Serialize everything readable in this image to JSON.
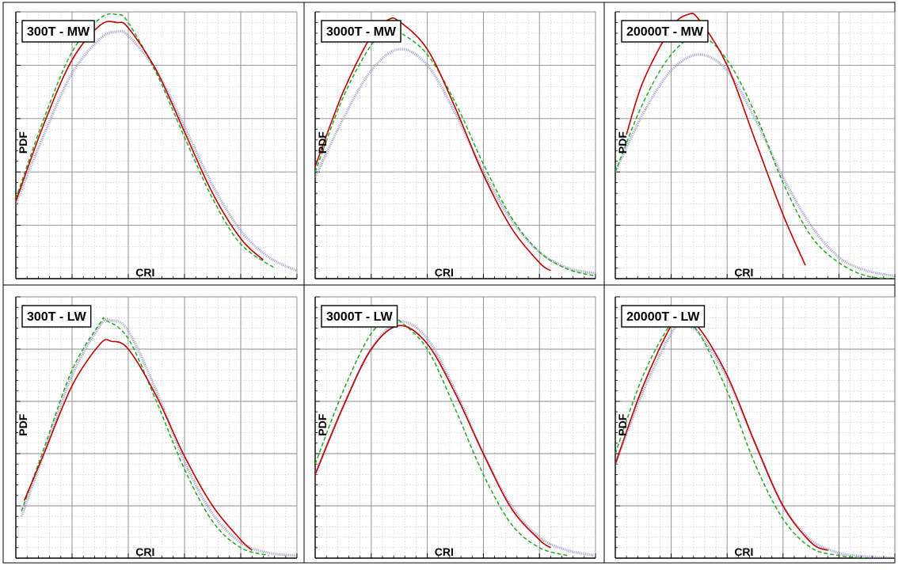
{
  "figure": {
    "colors": {
      "series_solid": "#c00000",
      "series_dashed": "#22aa22",
      "series_dotted": "#9a9ac8",
      "major_grid": "#8a8a8a",
      "minor_grid": "#c8c8c8",
      "frame": "#000000",
      "background": "#ffffff"
    }
  },
  "chart_data": [
    {
      "type": "line",
      "title": "300T - MW",
      "xlabel": "CRI",
      "ylabel": "PDF",
      "xlim": [
        0,
        5
      ],
      "ylim": [
        0,
        5
      ],
      "grid": true,
      "series": [
        {
          "style": "solid",
          "color": "#c00000",
          "x": [
            0.0,
            0.5,
            1.0,
            1.5,
            1.8,
            2.0,
            2.5,
            3.0,
            3.5,
            4.0,
            4.4
          ],
          "y": [
            1.45,
            2.9,
            4.1,
            4.75,
            4.8,
            4.7,
            3.9,
            2.75,
            1.6,
            0.75,
            0.35
          ]
        },
        {
          "style": "dashed",
          "color": "#22aa22",
          "x": [
            0.0,
            0.5,
            1.0,
            1.5,
            1.8,
            2.0,
            2.5,
            3.0,
            3.5,
            4.0,
            4.6
          ],
          "y": [
            1.5,
            3.0,
            4.25,
            4.88,
            4.95,
            4.8,
            3.85,
            2.65,
            1.5,
            0.65,
            0.2
          ]
        },
        {
          "style": "dotted",
          "color": "#9a9ac8",
          "x": [
            0.0,
            0.5,
            1.0,
            1.5,
            1.8,
            2.0,
            2.5,
            3.0,
            3.5,
            4.0,
            4.5,
            5.0
          ],
          "y": [
            1.4,
            2.7,
            3.85,
            4.5,
            4.63,
            4.55,
            3.9,
            2.85,
            1.75,
            0.9,
            0.4,
            0.15
          ]
        }
      ]
    },
    {
      "type": "line",
      "title": "3000T - MW",
      "xlabel": "CRI",
      "ylabel": "PDF",
      "xlim": [
        0,
        5
      ],
      "ylim": [
        0,
        5
      ],
      "grid": true,
      "series": [
        {
          "style": "solid",
          "color": "#c00000",
          "x": [
            0.0,
            0.5,
            1.0,
            1.3,
            1.5,
            2.0,
            2.5,
            3.0,
            3.5,
            4.0,
            4.2
          ],
          "y": [
            2.1,
            3.5,
            4.55,
            4.85,
            4.82,
            4.3,
            3.2,
            1.95,
            0.95,
            0.3,
            0.15
          ]
        },
        {
          "style": "dashed",
          "color": "#22aa22",
          "x": [
            0.0,
            0.5,
            1.0,
            1.3,
            1.5,
            2.0,
            2.5,
            3.0,
            3.5,
            4.0,
            4.5,
            5.0
          ],
          "y": [
            2.0,
            3.4,
            4.38,
            4.65,
            4.62,
            4.2,
            3.3,
            2.15,
            1.15,
            0.5,
            0.18,
            0.05
          ]
        },
        {
          "style": "dotted",
          "color": "#9a9ac8",
          "x": [
            0.0,
            0.5,
            1.0,
            1.5,
            2.0,
            2.5,
            3.0,
            3.5,
            4.0,
            4.5,
            5.0
          ],
          "y": [
            1.9,
            3.0,
            3.9,
            4.3,
            4.0,
            3.1,
            2.0,
            1.1,
            0.5,
            0.2,
            0.1
          ]
        }
      ]
    },
    {
      "type": "line",
      "title": "20000T - MW",
      "xlabel": "CRI",
      "ylabel": "PDF",
      "xlim": [
        0,
        5
      ],
      "ylim": [
        0,
        5
      ],
      "grid": true,
      "series": [
        {
          "style": "solid",
          "color": "#c00000",
          "x": [
            0.2,
            0.5,
            1.0,
            1.3,
            1.5,
            2.0,
            2.5,
            3.0,
            3.4
          ],
          "y": [
            2.7,
            3.7,
            4.7,
            4.95,
            4.85,
            4.0,
            2.6,
            1.2,
            0.25
          ]
        },
        {
          "style": "dashed",
          "color": "#22aa22",
          "x": [
            0.0,
            0.5,
            1.0,
            1.5,
            2.0,
            2.5,
            3.0,
            3.5,
            4.0,
            4.5,
            5.0
          ],
          "y": [
            2.0,
            3.3,
            4.2,
            4.55,
            4.1,
            3.1,
            1.8,
            0.8,
            0.3,
            0.05,
            0.0
          ]
        },
        {
          "style": "dotted",
          "color": "#9a9ac8",
          "x": [
            0.0,
            0.5,
            1.0,
            1.5,
            2.0,
            2.5,
            3.0,
            3.5,
            4.0,
            4.5,
            5.0
          ],
          "y": [
            2.0,
            3.1,
            3.9,
            4.2,
            3.9,
            3.0,
            1.9,
            1.0,
            0.4,
            0.15,
            0.05
          ]
        }
      ]
    },
    {
      "type": "line",
      "title": "300T - LW",
      "xlabel": "CRI",
      "ylabel": "PDF",
      "xlim": [
        0,
        5
      ],
      "ylim": [
        0,
        5
      ],
      "grid": true,
      "series": [
        {
          "style": "solid",
          "color": "#c00000",
          "x": [
            0.15,
            0.5,
            1.0,
            1.5,
            1.7,
            2.0,
            2.5,
            3.0,
            3.5,
            4.0,
            4.2
          ],
          "y": [
            1.1,
            2.0,
            3.3,
            4.1,
            4.15,
            4.0,
            3.1,
            1.95,
            1.0,
            0.35,
            0.15
          ]
        },
        {
          "style": "dashed",
          "color": "#22aa22",
          "x": [
            0.1,
            0.5,
            1.0,
            1.5,
            1.6,
            2.0,
            2.5,
            3.0,
            3.5,
            4.0,
            4.5
          ],
          "y": [
            0.9,
            2.1,
            3.6,
            4.5,
            4.55,
            4.2,
            3.0,
            1.7,
            0.7,
            0.2,
            0.05
          ]
        },
        {
          "style": "dotted",
          "color": "#9a9ac8",
          "x": [
            0.1,
            0.5,
            1.0,
            1.5,
            1.7,
            2.0,
            2.5,
            3.0,
            3.5,
            4.0,
            4.5,
            5.0
          ],
          "y": [
            0.8,
            2.0,
            3.5,
            4.45,
            4.55,
            4.35,
            3.2,
            1.85,
            0.85,
            0.3,
            0.1,
            0.05
          ]
        }
      ]
    },
    {
      "type": "line",
      "title": "3000T - LW",
      "xlabel": "CRI",
      "ylabel": "PDF",
      "xlim": [
        0,
        5
      ],
      "ylim": [
        0,
        5
      ],
      "grid": true,
      "series": [
        {
          "style": "solid",
          "color": "#c00000",
          "x": [
            0.0,
            0.5,
            1.0,
            1.5,
            2.0,
            2.5,
            3.0,
            3.5,
            4.0,
            4.2
          ],
          "y": [
            1.6,
            2.9,
            4.0,
            4.45,
            4.1,
            3.15,
            2.0,
            0.95,
            0.35,
            0.2
          ]
        },
        {
          "style": "dashed",
          "color": "#22aa22",
          "x": [
            0.0,
            0.5,
            1.0,
            1.4,
            1.5,
            2.0,
            2.5,
            3.0,
            3.5,
            4.0,
            4.5
          ],
          "y": [
            1.8,
            3.2,
            4.3,
            4.6,
            4.55,
            4.0,
            2.85,
            1.6,
            0.65,
            0.2,
            0.05
          ]
        },
        {
          "style": "dotted",
          "color": "#9a9ac8",
          "x": [
            0.0,
            0.5,
            1.0,
            1.5,
            2.0,
            2.5,
            3.0,
            3.5,
            4.0,
            4.5,
            5.0
          ],
          "y": [
            1.6,
            2.9,
            4.0,
            4.52,
            4.2,
            3.2,
            2.0,
            1.0,
            0.4,
            0.15,
            0.05
          ]
        }
      ]
    },
    {
      "type": "line",
      "title": "20000T - LW",
      "xlabel": "CRI",
      "ylabel": "PDF",
      "xlim": [
        0,
        5
      ],
      "ylim": [
        0,
        5
      ],
      "grid": true,
      "series": [
        {
          "style": "solid",
          "color": "#c00000",
          "x": [
            0.0,
            0.5,
            1.0,
            1.2,
            1.5,
            2.0,
            2.5,
            3.0,
            3.5,
            3.8
          ],
          "y": [
            1.8,
            3.3,
            4.45,
            4.57,
            4.4,
            3.5,
            2.2,
            1.0,
            0.3,
            0.15
          ]
        },
        {
          "style": "dashed",
          "color": "#22aa22",
          "x": [
            0.0,
            0.5,
            1.0,
            1.2,
            1.5,
            2.0,
            2.5,
            3.0,
            3.5,
            4.0,
            4.5
          ],
          "y": [
            2.0,
            3.5,
            4.5,
            4.55,
            4.3,
            3.2,
            1.8,
            0.75,
            0.2,
            0.05,
            0.0
          ]
        },
        {
          "style": "dotted",
          "color": "#9a9ac8",
          "x": [
            0.0,
            0.5,
            1.0,
            1.2,
            1.5,
            2.0,
            2.5,
            3.0,
            3.5,
            4.0,
            4.5,
            5.0
          ],
          "y": [
            1.8,
            3.2,
            4.3,
            4.45,
            4.3,
            3.45,
            2.2,
            1.0,
            0.35,
            0.1,
            0.03,
            0.0
          ]
        }
      ]
    }
  ]
}
